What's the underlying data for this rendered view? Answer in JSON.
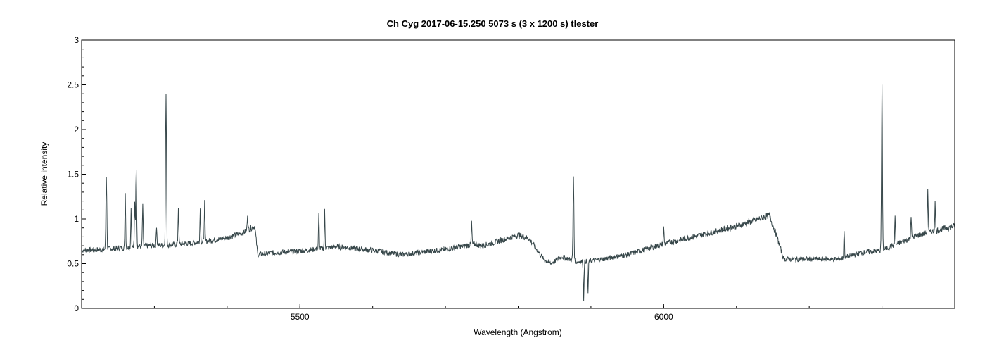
{
  "chart_data": {
    "type": "line",
    "title": "Ch Cyg   2017-06-15.250   5073 s (3 x 1200 s)   tlester",
    "xlabel": "Wavelength (Angstrom)",
    "ylabel": "Relative intensity",
    "xlim": [
      5200,
      6400
    ],
    "ylim": [
      0,
      3
    ],
    "grid": false,
    "legend": "none",
    "x_ticks": [
      {
        "value": 5500,
        "label": "5500"
      },
      {
        "value": 6000,
        "label": "6000"
      }
    ],
    "x_minor_step": 100,
    "y_ticks": [
      {
        "value": 0,
        "label": "0"
      },
      {
        "value": 0.5,
        "label": "0.5"
      },
      {
        "value": 1,
        "label": "1"
      },
      {
        "value": 1.5,
        "label": "1.5"
      },
      {
        "value": 2,
        "label": "2"
      },
      {
        "value": 2.5,
        "label": "2.5"
      },
      {
        "value": 3,
        "label": "3"
      }
    ],
    "y_minor_step": 0.1,
    "series": [
      {
        "color": "#37474a",
        "continuum": [
          [
            5200,
            0.65
          ],
          [
            5230,
            0.66
          ],
          [
            5260,
            0.68
          ],
          [
            5290,
            0.7
          ],
          [
            5320,
            0.71
          ],
          [
            5350,
            0.73
          ],
          [
            5380,
            0.76
          ],
          [
            5400,
            0.79
          ],
          [
            5420,
            0.84
          ],
          [
            5438,
            0.92
          ],
          [
            5442,
            0.6
          ],
          [
            5460,
            0.62
          ],
          [
            5500,
            0.64
          ],
          [
            5550,
            0.69
          ],
          [
            5600,
            0.65
          ],
          [
            5640,
            0.6
          ],
          [
            5660,
            0.62
          ],
          [
            5700,
            0.66
          ],
          [
            5740,
            0.72
          ],
          [
            5750,
            0.7
          ],
          [
            5760,
            0.72
          ],
          [
            5800,
            0.82
          ],
          [
            5815,
            0.78
          ],
          [
            5835,
            0.55
          ],
          [
            5845,
            0.5
          ],
          [
            5860,
            0.58
          ],
          [
            5880,
            0.52
          ],
          [
            5900,
            0.53
          ],
          [
            5950,
            0.6
          ],
          [
            6000,
            0.72
          ],
          [
            6050,
            0.82
          ],
          [
            6100,
            0.92
          ],
          [
            6145,
            1.04
          ],
          [
            6155,
            0.82
          ],
          [
            6165,
            0.55
          ],
          [
            6200,
            0.55
          ],
          [
            6240,
            0.55
          ],
          [
            6270,
            0.62
          ],
          [
            6300,
            0.65
          ],
          [
            6320,
            0.72
          ],
          [
            6350,
            0.82
          ],
          [
            6380,
            0.88
          ],
          [
            6400,
            0.92
          ]
        ],
        "emission_lines": [
          {
            "x": 5234,
            "peak": 1.48
          },
          {
            "x": 5260,
            "peak": 1.29
          },
          {
            "x": 5268,
            "peak": 1.12
          },
          {
            "x": 5273,
            "peak": 1.2
          },
          {
            "x": 5275,
            "peak": 1.57
          },
          {
            "x": 5284,
            "peak": 1.17
          },
          {
            "x": 5303,
            "peak": 0.93
          },
          {
            "x": 5316,
            "peak": 2.4
          },
          {
            "x": 5333,
            "peak": 1.13
          },
          {
            "x": 5363,
            "peak": 1.12
          },
          {
            "x": 5369,
            "peak": 1.19
          },
          {
            "x": 5428,
            "peak": 1.06
          },
          {
            "x": 5526,
            "peak": 1.05
          },
          {
            "x": 5534,
            "peak": 1.09
          },
          {
            "x": 5736,
            "peak": 0.97
          },
          {
            "x": 5876,
            "peak": 1.48
          },
          {
            "x": 6000,
            "peak": 0.9
          },
          {
            "x": 6248,
            "peak": 0.88
          },
          {
            "x": 6300,
            "peak": 2.48
          },
          {
            "x": 6318,
            "peak": 1.04
          },
          {
            "x": 6340,
            "peak": 1.04
          },
          {
            "x": 6363,
            "peak": 1.34
          },
          {
            "x": 6373,
            "peak": 1.18
          }
        ],
        "absorption_lines": [
          {
            "x": 5890,
            "min": 0.1
          },
          {
            "x": 5896,
            "min": 0.17
          }
        ]
      }
    ]
  }
}
